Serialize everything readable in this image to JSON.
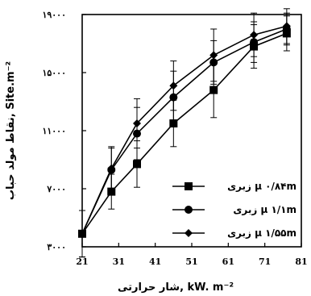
{
  "chart_data": {
    "type": "line",
    "xlabel": "شار حرارتی, kW. m⁻²",
    "ylabel": "نقاط مولد حباب, Site.m⁻²",
    "xlim": [
      21,
      81
    ],
    "ylim": [
      3000,
      19000
    ],
    "x_ticks": [
      21,
      31,
      41,
      51,
      61,
      71,
      81
    ],
    "x_tick_labels": [
      "21",
      "31",
      "41",
      "51",
      "61",
      "71",
      "81"
    ],
    "y_ticks": [
      3000,
      7000,
      11000,
      15000,
      19000
    ],
    "y_tick_labels": [
      "۳۰۰۰",
      "۷۰۰۰",
      "۱۱۰۰۰",
      "۱۵۰۰۰",
      "۱۹۰۰۰"
    ],
    "legend_position": "bottom-right",
    "grid": false,
    "series": [
      {
        "name": "زبری μ ۰/۸۴m",
        "marker": "square",
        "x": [
          21,
          29,
          36,
          46,
          57,
          68,
          77
        ],
        "y": [
          3900,
          6800,
          8700,
          11500,
          13800,
          16800,
          17700
        ],
        "err": [
          1600,
          1200,
          1600,
          1600,
          1900,
          1500,
          1200
        ]
      },
      {
        "name": "زبری μ ۱/۱m",
        "marker": "circle",
        "x": [
          21,
          29,
          36,
          46,
          57,
          68,
          77
        ],
        "y": [
          3900,
          8300,
          10800,
          13300,
          15700,
          17100,
          18000
        ],
        "err": [
          1600,
          1500,
          1800,
          1800,
          1500,
          1400,
          1100
        ]
      },
      {
        "name": "زبری μ ۱/۵۵m",
        "marker": "diamond",
        "x": [
          21,
          29,
          36,
          46,
          57,
          68,
          77
        ],
        "y": [
          3900,
          8400,
          11500,
          14100,
          16200,
          17600,
          18200
        ],
        "err": [
          1600,
          1500,
          1700,
          1700,
          1800,
          1500,
          1200
        ]
      }
    ]
  }
}
